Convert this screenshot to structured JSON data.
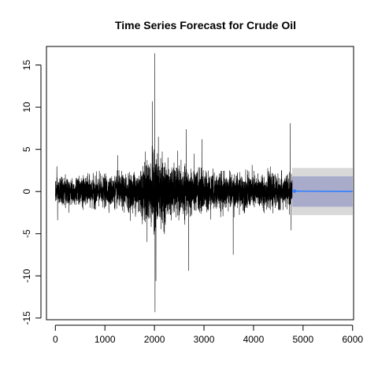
{
  "chart_data": {
    "type": "line",
    "title": "Time Series Forecast for Crude Oil",
    "xlabel": "",
    "ylabel": "",
    "xlim": [
      -180,
      6020
    ],
    "ylim": [
      -15.2,
      17.2
    ],
    "x_ticks": [
      0,
      1000,
      2000,
      3000,
      4000,
      5000,
      6000
    ],
    "y_ticks": [
      -15,
      -10,
      -5,
      0,
      5,
      10,
      15
    ],
    "grid": false,
    "series": [
      {
        "role": "observed",
        "x_range": [
          0,
          4780
        ],
        "color": "#000000",
        "volatility_profile": [
          {
            "x": 0,
            "sd": 0.75
          },
          {
            "x": 1200,
            "sd": 0.85
          },
          {
            "x": 1600,
            "sd": 1.1
          },
          {
            "x": 1900,
            "sd": 1.9
          },
          {
            "x": 2050,
            "sd": 2.1
          },
          {
            "x": 2300,
            "sd": 1.4
          },
          {
            "x": 2700,
            "sd": 1.3
          },
          {
            "x": 3300,
            "sd": 1.0
          },
          {
            "x": 4000,
            "sd": 0.95
          },
          {
            "x": 4780,
            "sd": 0.9
          }
        ],
        "spikes": [
          {
            "x": 30,
            "y": 3.0
          },
          {
            "x": 45,
            "y": -3.4
          },
          {
            "x": 1260,
            "y": 4.3
          },
          {
            "x": 1960,
            "y": 10.7
          },
          {
            "x": 1990,
            "y": -5.1
          },
          {
            "x": 2005,
            "y": 16.4
          },
          {
            "x": 2012,
            "y": -14.3
          },
          {
            "x": 2030,
            "y": -10.6
          },
          {
            "x": 2080,
            "y": 6.5
          },
          {
            "x": 2640,
            "y": 7.4
          },
          {
            "x": 2690,
            "y": -9.4
          },
          {
            "x": 2960,
            "y": 6.2
          },
          {
            "x": 3590,
            "y": -7.5
          },
          {
            "x": 4740,
            "y": 8.1
          },
          {
            "x": 4760,
            "y": -4.6
          }
        ]
      },
      {
        "role": "forecast_mean",
        "x": [
          4780,
          6000
        ],
        "y": [
          0.05,
          0.0
        ],
        "color": "#2f7fff"
      }
    ],
    "intervals": [
      {
        "level": 95,
        "lower": -2.8,
        "upper": 2.8,
        "x": [
          4780,
          6000
        ],
        "color": "#d9d9d9"
      },
      {
        "level": 80,
        "lower": -1.8,
        "upper": 1.8,
        "x": [
          4780,
          6000
        ],
        "color": "#a9abcb"
      }
    ]
  }
}
